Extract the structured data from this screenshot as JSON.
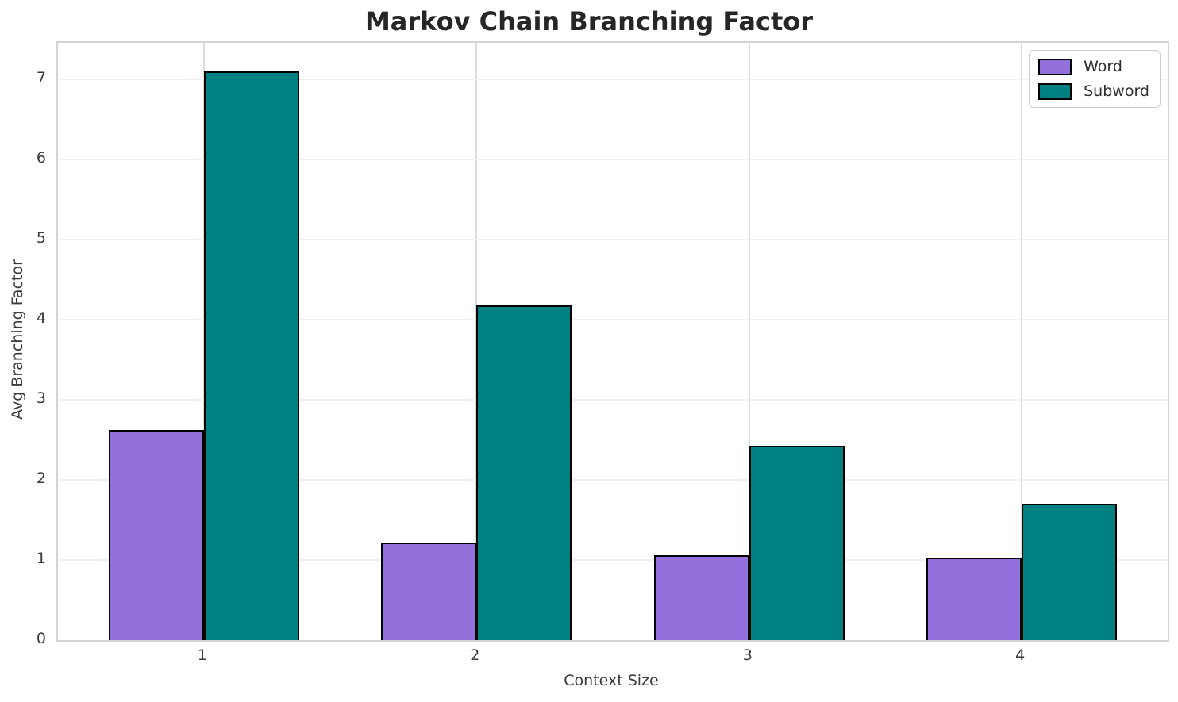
{
  "chart_data": {
    "type": "bar",
    "title": "Markov Chain Branching Factor",
    "xlabel": "Context Size",
    "ylabel": "Avg Branching Factor",
    "categories": [
      "1",
      "2",
      "3",
      "4"
    ],
    "series": [
      {
        "name": "Word",
        "color": "#9370DB",
        "values": [
          2.62,
          1.22,
          1.06,
          1.03
        ]
      },
      {
        "name": "Subword",
        "color": "#008080",
        "values": [
          7.1,
          4.18,
          2.43,
          1.7
        ]
      }
    ],
    "bar_edge_color": "#000000",
    "ylim": [
      0,
      7.455
    ],
    "yticks": [
      0,
      1,
      2,
      3,
      4,
      5,
      6,
      7
    ],
    "grid": true,
    "legend_position": "upper right",
    "colors": {
      "background": "#ffffff",
      "grid_horizontal": "#efefef",
      "grid_vertical": "#dcdcdc",
      "spine": "#d4d4d4",
      "text": "#3a3a3a",
      "title_text": "#262626"
    }
  }
}
